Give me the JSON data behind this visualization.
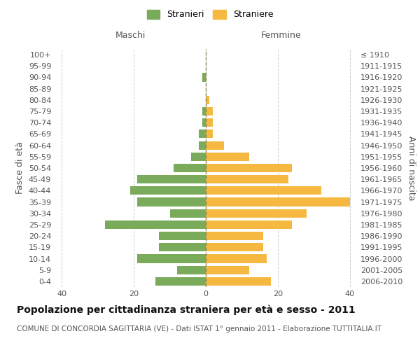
{
  "age_groups": [
    "0-4",
    "5-9",
    "10-14",
    "15-19",
    "20-24",
    "25-29",
    "30-34",
    "35-39",
    "40-44",
    "45-49",
    "50-54",
    "55-59",
    "60-64",
    "65-69",
    "70-74",
    "75-79",
    "80-84",
    "85-89",
    "90-94",
    "95-99",
    "100+"
  ],
  "birth_years": [
    "2006-2010",
    "2001-2005",
    "1996-2000",
    "1991-1995",
    "1986-1990",
    "1981-1985",
    "1976-1980",
    "1971-1975",
    "1966-1970",
    "1961-1965",
    "1956-1960",
    "1951-1955",
    "1946-1950",
    "1941-1945",
    "1936-1940",
    "1931-1935",
    "1926-1930",
    "1921-1925",
    "1916-1920",
    "1911-1915",
    "≤ 1910"
  ],
  "males": [
    14,
    8,
    19,
    13,
    13,
    28,
    10,
    19,
    21,
    19,
    9,
    4,
    2,
    2,
    1,
    1,
    0,
    0,
    1,
    0,
    0
  ],
  "females": [
    18,
    12,
    17,
    16,
    16,
    24,
    28,
    40,
    32,
    23,
    24,
    12,
    5,
    2,
    2,
    2,
    1,
    0,
    0,
    0,
    0
  ],
  "male_color": "#7aab5b",
  "female_color": "#f5b942",
  "center_line_color": "#888855",
  "grid_color": "#cccccc",
  "title": "Popolazione per cittadinanza straniera per età e sesso - 2011",
  "subtitle": "COMUNE DI CONCORDIA SAGITTARIA (VE) - Dati ISTAT 1° gennaio 2011 - Elaborazione TUTTITALIA.IT",
  "ylabel_left": "Fasce di età",
  "ylabel_right": "Anni di nascita",
  "xlabel_left": "Maschi",
  "xlabel_right": "Femmine",
  "legend_male": "Stranieri",
  "legend_female": "Straniere",
  "xlim": 42,
  "background_color": "#ffffff",
  "title_fontsize": 10,
  "subtitle_fontsize": 7.5,
  "tick_fontsize": 8,
  "label_fontsize": 9
}
